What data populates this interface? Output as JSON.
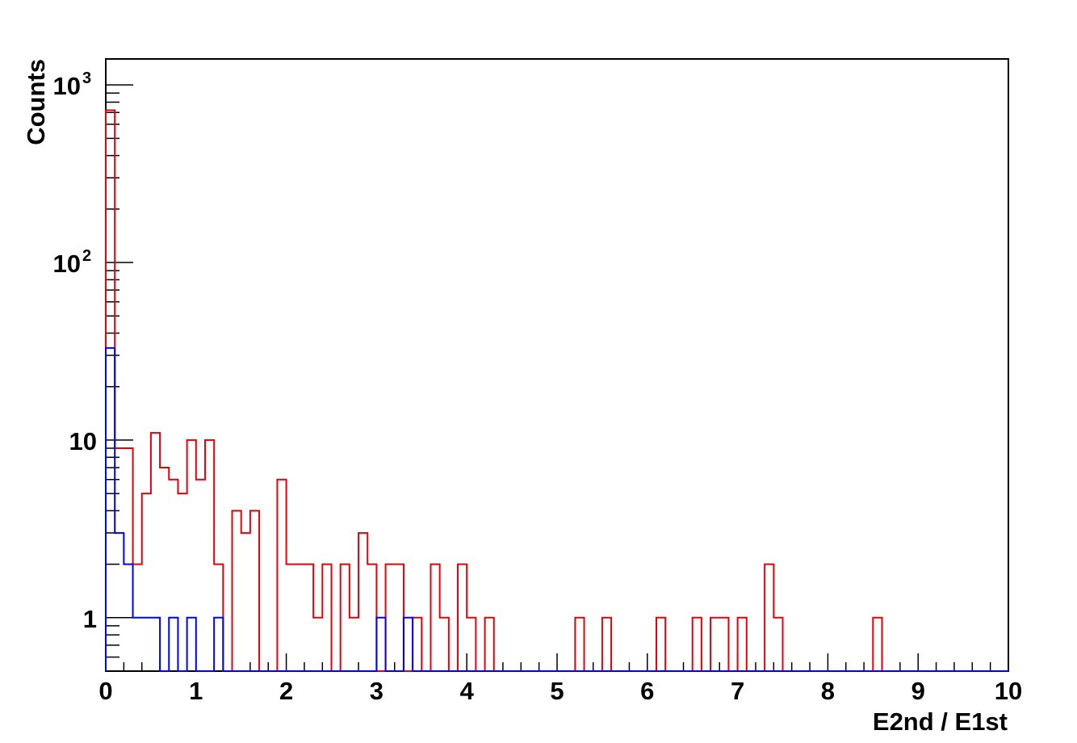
{
  "chart_data": {
    "type": "histogram",
    "title": "",
    "xlabel": "E2nd / E1st",
    "ylabel": "Counts",
    "xlim": [
      0,
      10
    ],
    "ylim": [
      0.5,
      1400
    ],
    "yscale": "log",
    "grid": false,
    "legend": "none",
    "bin_width": 0.1,
    "x_ticks": [
      {
        "value": 0,
        "label": "0"
      },
      {
        "value": 1,
        "label": "1"
      },
      {
        "value": 2,
        "label": "2"
      },
      {
        "value": 3,
        "label": "3"
      },
      {
        "value": 4,
        "label": "4"
      },
      {
        "value": 5,
        "label": "5"
      },
      {
        "value": 6,
        "label": "6"
      },
      {
        "value": 7,
        "label": "7"
      },
      {
        "value": 8,
        "label": "8"
      },
      {
        "value": 9,
        "label": "9"
      },
      {
        "value": 10,
        "label": "10"
      }
    ],
    "y_ticks": [
      {
        "value": 1,
        "base": "1",
        "exp": ""
      },
      {
        "value": 10,
        "base": "10",
        "exp": ""
      },
      {
        "value": 100,
        "base": "10",
        "exp": "2"
      },
      {
        "value": 1000,
        "base": "10",
        "exp": "3"
      }
    ],
    "series": [
      {
        "color": "#e8000b",
        "values": [
          720,
          9,
          9,
          2,
          5,
          11,
          7,
          6,
          5,
          10,
          6,
          10,
          2,
          0,
          4,
          3,
          4,
          0,
          0,
          6,
          2,
          2,
          2,
          1,
          2,
          0,
          2,
          1,
          3,
          2,
          0,
          2,
          2,
          0,
          1,
          0,
          2,
          1,
          0,
          2,
          1,
          0,
          1,
          0,
          0,
          0,
          0,
          0,
          0,
          0,
          0,
          0,
          1,
          0,
          0,
          1,
          0,
          0,
          0,
          0,
          0,
          1,
          0,
          0,
          0,
          1,
          0,
          1,
          1,
          0,
          1,
          0,
          0,
          2,
          1,
          0,
          0,
          0,
          0,
          0,
          0,
          0,
          0,
          0,
          0,
          1,
          0,
          0,
          0,
          0,
          0,
          0,
          0,
          0,
          0,
          0,
          0,
          0,
          0,
          0
        ]
      },
      {
        "color": "#0000ff",
        "values": [
          33,
          3,
          2,
          1,
          1,
          1,
          0,
          1,
          0,
          1,
          0,
          0,
          1,
          0,
          0,
          0,
          0,
          0,
          0,
          0,
          0,
          0,
          0,
          0,
          0,
          0,
          0,
          0,
          0,
          0,
          1,
          0,
          0,
          1,
          0,
          0,
          0,
          0,
          0,
          0,
          0,
          0,
          0,
          0,
          0,
          0,
          0,
          0,
          0,
          0,
          0,
          0,
          0,
          0,
          0,
          0,
          0,
          0,
          0,
          0,
          0,
          0,
          0,
          0,
          0,
          0,
          0,
          0,
          0,
          0,
          0,
          0,
          0,
          0,
          0,
          0,
          0,
          0,
          0,
          0,
          0,
          0,
          0,
          0,
          0,
          0,
          0,
          0,
          0,
          0,
          0,
          0,
          0,
          0,
          0,
          0,
          0,
          0,
          0,
          0
        ]
      }
    ]
  }
}
